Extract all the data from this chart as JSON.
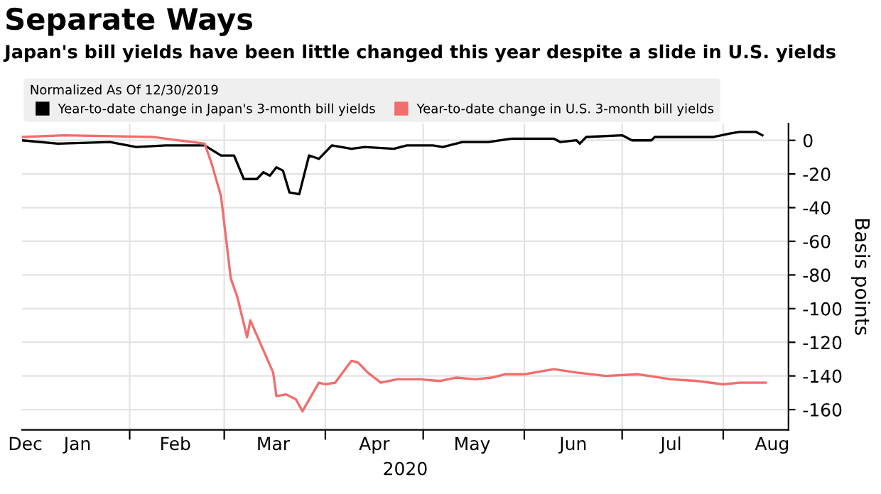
{
  "chart_data": {
    "type": "line",
    "title": "Separate Ways",
    "subtitle": "Japan's bill yields have been little changed this year despite a slide in U.S. yields",
    "xlabel": "2020",
    "ylabel": "Basis points",
    "legend_title": "Normalized As Of 12/30/2019",
    "legend": "top",
    "grid": true,
    "marker": "none",
    "line_style": "solid",
    "xlim": [
      "2019-12-30",
      "2020-08-21"
    ],
    "ylim": [
      -172,
      10
    ],
    "yticks": [
      0,
      -20,
      -40,
      -60,
      -80,
      -100,
      -120,
      -140,
      -160
    ],
    "xticks": [
      {
        "value": "2019-12-31",
        "label": "Dec"
      },
      {
        "value": "2020-01-16",
        "label": "Jan"
      },
      {
        "value": "2020-02-01",
        "label": null
      },
      {
        "value": "2020-02-15",
        "label": "Feb"
      },
      {
        "value": "2020-03-01",
        "label": null
      },
      {
        "value": "2020-03-16",
        "label": "Mar"
      },
      {
        "value": "2020-04-01",
        "label": null
      },
      {
        "value": "2020-04-16",
        "label": "Apr"
      },
      {
        "value": "2020-05-01",
        "label": null
      },
      {
        "value": "2020-05-16",
        "label": "May"
      },
      {
        "value": "2020-06-01",
        "label": null
      },
      {
        "value": "2020-06-16",
        "label": "Jun"
      },
      {
        "value": "2020-07-01",
        "label": null
      },
      {
        "value": "2020-07-16",
        "label": "Jul"
      },
      {
        "value": "2020-08-01",
        "label": null
      },
      {
        "value": "2020-08-16",
        "label": "Aug"
      }
    ],
    "series": [
      {
        "name": "Year-to-date change in Japan's 3-month bill yields",
        "color": "#000000",
        "x": [
          "2019-12-30",
          "2020-01-10",
          "2020-01-26",
          "2020-02-03",
          "2020-02-12",
          "2020-02-24",
          "2020-02-29",
          "2020-03-04",
          "2020-03-07",
          "2020-03-11",
          "2020-03-13",
          "2020-03-15",
          "2020-03-17",
          "2020-03-19",
          "2020-03-21",
          "2020-03-24",
          "2020-03-27",
          "2020-03-30",
          "2020-04-03",
          "2020-04-09",
          "2020-04-13",
          "2020-04-22",
          "2020-04-26",
          "2020-05-04",
          "2020-05-07",
          "2020-05-13",
          "2020-05-21",
          "2020-05-28",
          "2020-06-10",
          "2020-06-12",
          "2020-06-17",
          "2020-06-18",
          "2020-06-20",
          "2020-07-01",
          "2020-07-04",
          "2020-07-10",
          "2020-07-11",
          "2020-07-21",
          "2020-07-29",
          "2020-08-03",
          "2020-08-06",
          "2020-08-11",
          "2020-08-13"
        ],
        "values": [
          0,
          -2,
          -1,
          -4,
          -3,
          -3,
          -9,
          -9,
          -23,
          -23,
          -19,
          -21,
          -16,
          -18,
          -31,
          -32,
          -9,
          -11,
          -3,
          -5,
          -4,
          -5,
          -3,
          -3,
          -4,
          -1,
          -1,
          1,
          1,
          -1,
          0,
          -2,
          2,
          3,
          0,
          0,
          2,
          2,
          2,
          4,
          5,
          5,
          3
        ]
      },
      {
        "name": "Year-to-date change in U.S. 3-month bill yields",
        "color": "#f26d6d",
        "x": [
          "2019-12-30",
          "2020-01-12",
          "2020-02-08",
          "2020-02-24",
          "2020-02-26",
          "2020-02-29",
          "2020-03-03",
          "2020-03-05",
          "2020-03-08",
          "2020-03-09",
          "2020-03-16",
          "2020-03-17",
          "2020-03-20",
          "2020-03-23",
          "2020-03-25",
          "2020-03-30",
          "2020-04-01",
          "2020-04-04",
          "2020-04-09",
          "2020-04-11",
          "2020-04-14",
          "2020-04-18",
          "2020-04-23",
          "2020-04-30",
          "2020-05-06",
          "2020-05-11",
          "2020-05-17",
          "2020-05-22",
          "2020-05-26",
          "2020-06-01",
          "2020-06-10",
          "2020-06-17",
          "2020-06-26",
          "2020-07-06",
          "2020-07-16",
          "2020-07-24",
          "2020-08-01",
          "2020-08-06",
          "2020-08-14"
        ],
        "values": [
          2,
          3,
          2,
          -2,
          -13,
          -33,
          -82,
          -93,
          -117,
          -107,
          -138,
          -152,
          -151,
          -154,
          -161,
          -144,
          -145,
          -144,
          -131,
          -132,
          -138,
          -144,
          -142,
          -142,
          -143,
          -141,
          -142,
          -141,
          -139,
          -139,
          -136,
          -138,
          -140,
          -139,
          -142,
          -143,
          -145,
          -144,
          -144
        ]
      }
    ]
  }
}
